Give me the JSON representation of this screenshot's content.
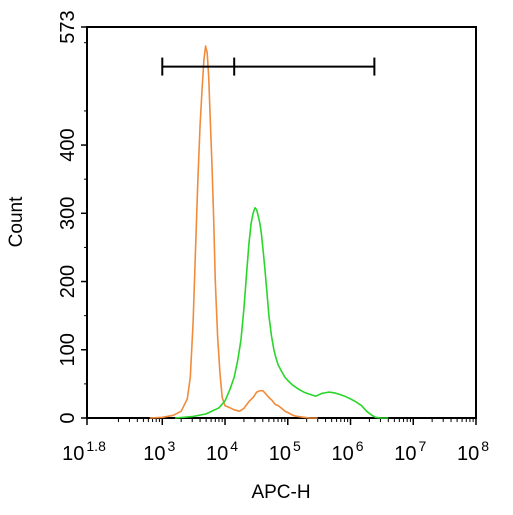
{
  "chart_data": {
    "type": "line",
    "title": "",
    "xlabel": "APC-H",
    "ylabel": "Count",
    "x_scale": "log",
    "xlim": [
      63.1,
      100000000
    ],
    "ylim": [
      0,
      573
    ],
    "x_ticks": [
      {
        "base": "10",
        "exp": "1.8",
        "value": 63.1
      },
      {
        "base": "10",
        "exp": "3",
        "value": 1000
      },
      {
        "base": "10",
        "exp": "4",
        "value": 10000
      },
      {
        "base": "10",
        "exp": "5",
        "value": 100000
      },
      {
        "base": "10",
        "exp": "6",
        "value": 1000000
      },
      {
        "base": "10",
        "exp": "7",
        "value": 10000000
      },
      {
        "base": "10",
        "exp": "8",
        "value": 100000000
      }
    ],
    "y_ticks": [
      {
        "label": "0",
        "value": 0
      },
      {
        "label": "100",
        "value": 100
      },
      {
        "label": "200",
        "value": 200
      },
      {
        "label": "300",
        "value": 300
      },
      {
        "label": "400",
        "value": 400
      },
      {
        "label": "573",
        "value": 573
      }
    ],
    "gate": {
      "x_left": 1000,
      "x_mid": 14000,
      "x_right": 2400000,
      "y": 515
    },
    "series": [
      {
        "color": "#f08c3c",
        "x": [
          630,
          1000,
          1500,
          2000,
          2500,
          2800,
          3100,
          3400,
          3700,
          4000,
          4300,
          4600,
          4900,
          5200,
          5500,
          5800,
          6200,
          6600,
          7000,
          7600,
          8300,
          9000,
          10000,
          12000,
          14000,
          17000,
          20000,
          24000,
          28000,
          32000,
          36000,
          40000,
          45000,
          50000,
          56000,
          63000,
          71000,
          80000,
          90000,
          100000,
          115000,
          130000,
          150000,
          180000,
          220000,
          300000
        ],
        "y": [
          0,
          1,
          4,
          10,
          28,
          60,
          140,
          250,
          350,
          430,
          480,
          525,
          545,
          535,
          500,
          440,
          370,
          290,
          200,
          120,
          65,
          30,
          18,
          15,
          12,
          10,
          14,
          24,
          30,
          38,
          40,
          40,
          35,
          30,
          26,
          20,
          18,
          14,
          10,
          8,
          5,
          3,
          2,
          1,
          0,
          0
        ]
      },
      {
        "color": "#2ad62a",
        "x": [
          1600,
          3000,
          5000,
          8000,
          10000,
          12000,
          14000,
          16000,
          18000,
          20000,
          22000,
          24000,
          26000,
          28000,
          30000,
          32000,
          34000,
          36000,
          38000,
          40000,
          43000,
          46000,
          50000,
          55000,
          60000,
          65000,
          70000,
          80000,
          90000,
          100000,
          120000,
          150000,
          180000,
          220000,
          280000,
          350000,
          450000,
          550000,
          650000,
          750000,
          850000,
          1000000,
          1200000,
          1500000,
          1800000,
          2200000,
          2500000,
          3000000,
          4000000
        ],
        "y": [
          0,
          2,
          6,
          15,
          25,
          42,
          60,
          85,
          115,
          160,
          210,
          255,
          285,
          300,
          308,
          305,
          295,
          285,
          270,
          250,
          220,
          190,
          150,
          120,
          100,
          88,
          78,
          68,
          60,
          55,
          48,
          42,
          38,
          35,
          32,
          36,
          38,
          37,
          35,
          33,
          31,
          28,
          24,
          18,
          10,
          4,
          1,
          0,
          0
        ]
      }
    ]
  }
}
